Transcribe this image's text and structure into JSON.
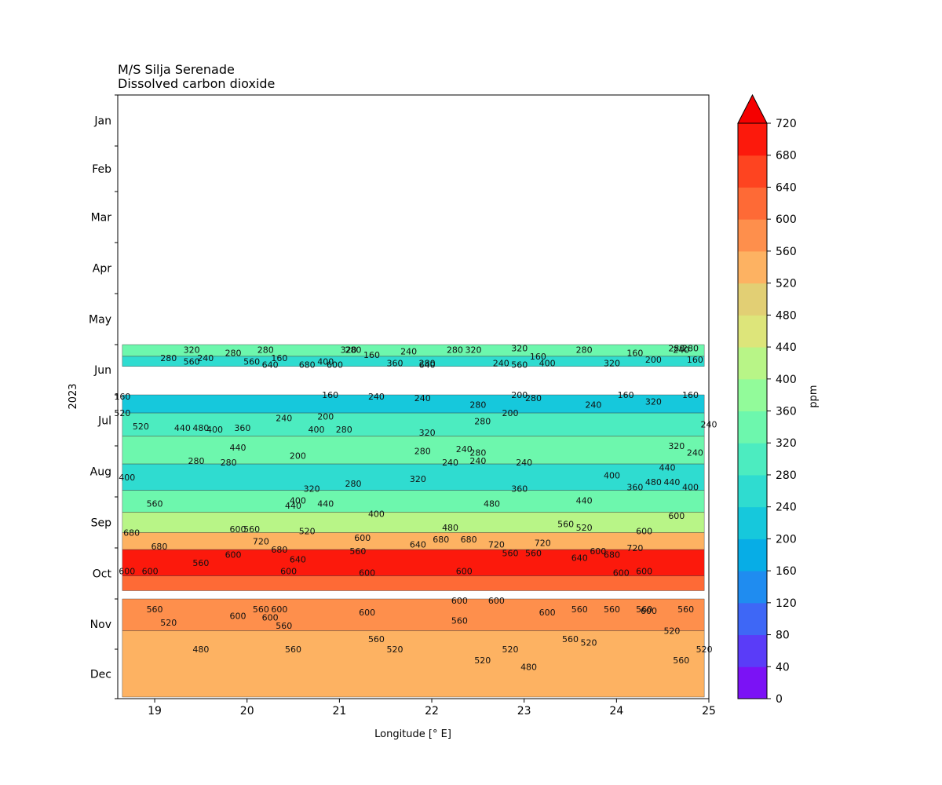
{
  "chart_data": {
    "type": "heatmap",
    "title_lines": [
      "M/S Silja Serenade",
      "Dissolved carbon dioxide"
    ],
    "xlabel": "Longitude [° E]",
    "ylabel": "2023",
    "xlim": [
      18.6,
      25
    ],
    "x_ticks": [
      19,
      20,
      21,
      22,
      23,
      24,
      25
    ],
    "y_ticks": [
      "Jan",
      "Feb",
      "Mar",
      "Apr",
      "May",
      "Jun",
      "Jul",
      "Aug",
      "Sep",
      "Oct",
      "Nov",
      "Dec"
    ],
    "colorbar": {
      "label": "ppm",
      "levels": [
        0,
        40,
        80,
        120,
        160,
        200,
        240,
        280,
        320,
        360,
        400,
        440,
        480,
        520,
        560,
        600,
        640,
        680,
        720
      ],
      "extend": "max",
      "colors": [
        "#7b12f5",
        "#5a3cf8",
        "#3e67f6",
        "#1f8cf0",
        "#07ade6",
        "#16c8dc",
        "#2fdcd0",
        "#4cecc0",
        "#6df7ad",
        "#92fb9a",
        "#b8f587",
        "#dde57a",
        "#e2cf74",
        "#fdb262",
        "#fe8f4c",
        "#fe6a36",
        "#fe4420",
        "#fc190c",
        "#f50000"
      ]
    },
    "data_blocks": [
      {
        "date_range": [
          "Jun 01",
          "Jun 14"
        ],
        "lon_range": [
          18.65,
          24.95
        ]
      },
      {
        "date_range": [
          "Jul 01",
          "Oct 27"
        ],
        "lon_range": [
          18.65,
          24.95
        ]
      },
      {
        "date_range": [
          "Nov 01",
          "Dec 31"
        ],
        "lon_range": [
          18.65,
          24.95
        ]
      }
    ],
    "bands": [
      {
        "date_range": [
          "Jun 01",
          "Jun 08"
        ],
        "value": 330
      },
      {
        "date_range": [
          "Jun 08",
          "Jun 14"
        ],
        "value": 250
      },
      {
        "date_range": [
          "Jul 01",
          "Jul 12"
        ],
        "value": 230
      },
      {
        "date_range": [
          "Jul 12",
          "Jul 26"
        ],
        "value": 290
      },
      {
        "date_range": [
          "Jul 26",
          "Aug 12"
        ],
        "value": 320
      },
      {
        "date_range": [
          "Aug 12",
          "Aug 28"
        ],
        "value": 270
      },
      {
        "date_range": [
          "Aug 28",
          "Sep 10"
        ],
        "value": 350
      },
      {
        "date_range": [
          "Sep 10",
          "Sep 22"
        ],
        "value": 430
      },
      {
        "date_range": [
          "Sep 22",
          "Oct 02"
        ],
        "value": 540
      },
      {
        "date_range": [
          "Oct 02",
          "Oct 18"
        ],
        "value": 690
      },
      {
        "date_range": [
          "Oct 18",
          "Oct 27"
        ],
        "value": 610
      },
      {
        "date_range": [
          "Nov 01",
          "Nov 20"
        ],
        "value": 590
      },
      {
        "date_range": [
          "Nov 20",
          "Dec 31"
        ],
        "value": 520
      }
    ],
    "contour_labels": [
      {
        "text": "320",
        "lon": 19.4,
        "date": "Jun 04"
      },
      {
        "text": "280",
        "lon": 20.2,
        "date": "Jun 04"
      },
      {
        "text": "280",
        "lon": 19.85,
        "date": "Jun 06"
      },
      {
        "text": "320",
        "lon": 21.1,
        "date": "Jun 04"
      },
      {
        "text": "280",
        "lon": 21.15,
        "date": "Jun 04"
      },
      {
        "text": "240",
        "lon": 21.75,
        "date": "Jun 05"
      },
      {
        "text": "160",
        "lon": 21.35,
        "date": "Jun 07"
      },
      {
        "text": "280",
        "lon": 22.25,
        "date": "Jun 04"
      },
      {
        "text": "320",
        "lon": 22.45,
        "date": "Jun 04"
      },
      {
        "text": "320",
        "lon": 22.95,
        "date": "Jun 03"
      },
      {
        "text": "280",
        "lon": 23.65,
        "date": "Jun 04"
      },
      {
        "text": "280",
        "lon": 24.65,
        "date": "Jun 03"
      },
      {
        "text": "240",
        "lon": 24.7,
        "date": "Jun 04"
      },
      {
        "text": "280",
        "lon": 24.8,
        "date": "Jun 03"
      },
      {
        "text": "160",
        "lon": 23.15,
        "date": "Jun 08"
      },
      {
        "text": "160",
        "lon": 24.2,
        "date": "Jun 06"
      },
      {
        "text": "200",
        "lon": 24.4,
        "date": "Jun 10"
      },
      {
        "text": "160",
        "lon": 24.85,
        "date": "Jun 10"
      },
      {
        "text": "280",
        "lon": 19.15,
        "date": "Jun 09"
      },
      {
        "text": "560",
        "lon": 19.4,
        "date": "Jun 11"
      },
      {
        "text": "240",
        "lon": 19.55,
        "date": "Jun 09"
      },
      {
        "text": "560",
        "lon": 20.05,
        "date": "Jun 11"
      },
      {
        "text": "160",
        "lon": 20.35,
        "date": "Jun 09"
      },
      {
        "text": "640",
        "lon": 20.25,
        "date": "Jun 13"
      },
      {
        "text": "680",
        "lon": 20.65,
        "date": "Jun 13"
      },
      {
        "text": "400",
        "lon": 20.85,
        "date": "Jun 11"
      },
      {
        "text": "600",
        "lon": 20.95,
        "date": "Jun 13"
      },
      {
        "text": "360",
        "lon": 21.6,
        "date": "Jun 12"
      },
      {
        "text": "280",
        "lon": 21.95,
        "date": "Jun 12"
      },
      {
        "text": "640",
        "lon": 21.95,
        "date": "Jun 13"
      },
      {
        "text": "240",
        "lon": 22.75,
        "date": "Jun 12"
      },
      {
        "text": "560",
        "lon": 22.95,
        "date": "Jun 13"
      },
      {
        "text": "400",
        "lon": 23.25,
        "date": "Jun 12"
      },
      {
        "text": "320",
        "lon": 23.95,
        "date": "Jun 12"
      },
      {
        "text": "160",
        "lon": 18.65,
        "date": "Jul 02"
      },
      {
        "text": "160",
        "lon": 20.9,
        "date": "Jul 01"
      },
      {
        "text": "240",
        "lon": 21.4,
        "date": "Jul 02"
      },
      {
        "text": "240",
        "lon": 21.9,
        "date": "Jul 03"
      },
      {
        "text": "200",
        "lon": 22.95,
        "date": "Jul 01"
      },
      {
        "text": "280",
        "lon": 23.1,
        "date": "Jul 03"
      },
      {
        "text": "280",
        "lon": 22.5,
        "date": "Jul 07"
      },
      {
        "text": "200",
        "lon": 22.85,
        "date": "Jul 12"
      },
      {
        "text": "160",
        "lon": 24.1,
        "date": "Jul 01"
      },
      {
        "text": "160",
        "lon": 24.8,
        "date": "Jul 01"
      },
      {
        "text": "240",
        "lon": 23.75,
        "date": "Jul 07"
      },
      {
        "text": "320",
        "lon": 24.4,
        "date": "Jul 05"
      },
      {
        "text": "240",
        "lon": 25.0,
        "date": "Jul 19"
      },
      {
        "text": "520",
        "lon": 18.65,
        "date": "Jul 12"
      },
      {
        "text": "520",
        "lon": 18.85,
        "date": "Jul 20"
      },
      {
        "text": "440",
        "lon": 19.3,
        "date": "Jul 21"
      },
      {
        "text": "480",
        "lon": 19.5,
        "date": "Jul 21"
      },
      {
        "text": "400",
        "lon": 19.65,
        "date": "Jul 22"
      },
      {
        "text": "360",
        "lon": 19.95,
        "date": "Jul 21"
      },
      {
        "text": "240",
        "lon": 20.4,
        "date": "Jul 15"
      },
      {
        "text": "200",
        "lon": 20.85,
        "date": "Jul 14"
      },
      {
        "text": "400",
        "lon": 20.75,
        "date": "Jul 22"
      },
      {
        "text": "280",
        "lon": 21.05,
        "date": "Jul 22"
      },
      {
        "text": "280",
        "lon": 22.55,
        "date": "Jul 17"
      },
      {
        "text": "320",
        "lon": 21.95,
        "date": "Jul 24"
      },
      {
        "text": "440",
        "lon": 19.9,
        "date": "Aug 02"
      },
      {
        "text": "280",
        "lon": 19.45,
        "date": "Aug 10"
      },
      {
        "text": "280",
        "lon": 19.8,
        "date": "Aug 11"
      },
      {
        "text": "200",
        "lon": 20.55,
        "date": "Aug 07"
      },
      {
        "text": "280",
        "lon": 21.9,
        "date": "Aug 04"
      },
      {
        "text": "240",
        "lon": 22.35,
        "date": "Aug 03"
      },
      {
        "text": "280",
        "lon": 22.5,
        "date": "Aug 05"
      },
      {
        "text": "240",
        "lon": 22.5,
        "date": "Aug 10"
      },
      {
        "text": "240",
        "lon": 22.2,
        "date": "Aug 11"
      },
      {
        "text": "240",
        "lon": 23.0,
        "date": "Aug 11"
      },
      {
        "text": "320",
        "lon": 24.65,
        "date": "Aug 01"
      },
      {
        "text": "240",
        "lon": 24.85,
        "date": "Aug 05"
      },
      {
        "text": "440",
        "lon": 24.55,
        "date": "Aug 14"
      },
      {
        "text": "400",
        "lon": 18.7,
        "date": "Aug 20"
      },
      {
        "text": "320",
        "lon": 21.85,
        "date": "Aug 21"
      },
      {
        "text": "280",
        "lon": 21.15,
        "date": "Aug 24"
      },
      {
        "text": "320",
        "lon": 20.7,
        "date": "Aug 27"
      },
      {
        "text": "400",
        "lon": 23.95,
        "date": "Aug 19"
      },
      {
        "text": "480",
        "lon": 24.4,
        "date": "Aug 23"
      },
      {
        "text": "440",
        "lon": 24.6,
        "date": "Aug 23"
      },
      {
        "text": "400",
        "lon": 24.8,
        "date": "Aug 26"
      },
      {
        "text": "360",
        "lon": 24.2,
        "date": "Aug 26"
      },
      {
        "text": "360",
        "lon": 22.95,
        "date": "Aug 27"
      },
      {
        "text": "400",
        "lon": 20.55,
        "date": "Sep 03"
      },
      {
        "text": "440",
        "lon": 20.5,
        "date": "Sep 06"
      },
      {
        "text": "440",
        "lon": 20.85,
        "date": "Sep 05"
      },
      {
        "text": "560",
        "lon": 19.0,
        "date": "Sep 05"
      },
      {
        "text": "400",
        "lon": 21.4,
        "date": "Sep 11"
      },
      {
        "text": "480",
        "lon": 22.65,
        "date": "Sep 05"
      },
      {
        "text": "440",
        "lon": 23.65,
        "date": "Sep 03"
      },
      {
        "text": "600",
        "lon": 24.65,
        "date": "Sep 12"
      },
      {
        "text": "600",
        "lon": 19.9,
        "date": "Sep 20"
      },
      {
        "text": "560",
        "lon": 20.05,
        "date": "Sep 20"
      },
      {
        "text": "520",
        "lon": 20.65,
        "date": "Sep 21"
      },
      {
        "text": "480",
        "lon": 22.2,
        "date": "Sep 19"
      },
      {
        "text": "560",
        "lon": 23.45,
        "date": "Sep 17"
      },
      {
        "text": "520",
        "lon": 23.65,
        "date": "Sep 19"
      },
      {
        "text": "600",
        "lon": 24.3,
        "date": "Sep 21"
      },
      {
        "text": "680",
        "lon": 18.75,
        "date": "Sep 22"
      },
      {
        "text": "680",
        "lon": 19.05,
        "date": "Sep 30"
      },
      {
        "text": "720",
        "lon": 20.15,
        "date": "Sep 27"
      },
      {
        "text": "680",
        "lon": 20.35,
        "date": "Oct 02"
      },
      {
        "text": "640",
        "lon": 20.55,
        "date": "Oct 08"
      },
      {
        "text": "600",
        "lon": 19.85,
        "date": "Oct 05"
      },
      {
        "text": "560",
        "lon": 19.5,
        "date": "Oct 10"
      },
      {
        "text": "640",
        "lon": 21.85,
        "date": "Sep 29"
      },
      {
        "text": "600",
        "lon": 21.25,
        "date": "Sep 25"
      },
      {
        "text": "560",
        "lon": 21.2,
        "date": "Oct 03"
      },
      {
        "text": "680",
        "lon": 22.1,
        "date": "Sep 26"
      },
      {
        "text": "680",
        "lon": 22.4,
        "date": "Sep 26"
      },
      {
        "text": "720",
        "lon": 22.7,
        "date": "Sep 29"
      },
      {
        "text": "560",
        "lon": 22.85,
        "date": "Oct 04"
      },
      {
        "text": "560",
        "lon": 23.1,
        "date": "Oct 04"
      },
      {
        "text": "720",
        "lon": 23.2,
        "date": "Sep 28"
      },
      {
        "text": "720",
        "lon": 24.2,
        "date": "Oct 01"
      },
      {
        "text": "640",
        "lon": 23.6,
        "date": "Oct 07"
      },
      {
        "text": "600",
        "lon": 23.8,
        "date": "Oct 03"
      },
      {
        "text": "680",
        "lon": 23.95,
        "date": "Oct 05"
      },
      {
        "text": "600",
        "lon": 18.7,
        "date": "Oct 15"
      },
      {
        "text": "600",
        "lon": 18.95,
        "date": "Oct 15"
      },
      {
        "text": "600",
        "lon": 20.45,
        "date": "Oct 15"
      },
      {
        "text": "600",
        "lon": 21.3,
        "date": "Oct 16"
      },
      {
        "text": "600",
        "lon": 22.35,
        "date": "Oct 15"
      },
      {
        "text": "600",
        "lon": 24.05,
        "date": "Oct 16"
      },
      {
        "text": "600",
        "lon": 24.3,
        "date": "Oct 15"
      },
      {
        "text": "600",
        "lon": 22.3,
        "date": "Nov 02"
      },
      {
        "text": "600",
        "lon": 22.7,
        "date": "Nov 02"
      },
      {
        "text": "560",
        "lon": 19.0,
        "date": "Nov 07"
      },
      {
        "text": "560",
        "lon": 20.15,
        "date": "Nov 07"
      },
      {
        "text": "600",
        "lon": 20.35,
        "date": "Nov 07"
      },
      {
        "text": "600",
        "lon": 21.3,
        "date": "Nov 09"
      },
      {
        "text": "560",
        "lon": 23.6,
        "date": "Nov 07"
      },
      {
        "text": "560",
        "lon": 23.95,
        "date": "Nov 07"
      },
      {
        "text": "560",
        "lon": 24.3,
        "date": "Nov 07"
      },
      {
        "text": "560",
        "lon": 24.75,
        "date": "Nov 07"
      },
      {
        "text": "600",
        "lon": 24.35,
        "date": "Nov 08"
      },
      {
        "text": "600",
        "lon": 23.25,
        "date": "Nov 09"
      },
      {
        "text": "600",
        "lon": 19.9,
        "date": "Nov 11"
      },
      {
        "text": "600",
        "lon": 20.25,
        "date": "Nov 12"
      },
      {
        "text": "520",
        "lon": 19.15,
        "date": "Nov 15"
      },
      {
        "text": "560",
        "lon": 20.4,
        "date": "Nov 17"
      },
      {
        "text": "560",
        "lon": 22.3,
        "date": "Nov 14"
      },
      {
        "text": "560",
        "lon": 21.4,
        "date": "Nov 25"
      },
      {
        "text": "520",
        "lon": 24.6,
        "date": "Nov 20"
      },
      {
        "text": "560",
        "lon": 23.5,
        "date": "Nov 25"
      },
      {
        "text": "520",
        "lon": 23.7,
        "date": "Nov 27"
      },
      {
        "text": "480",
        "lon": 19.5,
        "date": "Dec 01"
      },
      {
        "text": "560",
        "lon": 20.5,
        "date": "Dec 01"
      },
      {
        "text": "520",
        "lon": 21.6,
        "date": "Dec 01"
      },
      {
        "text": "520",
        "lon": 22.85,
        "date": "Dec 01"
      },
      {
        "text": "520",
        "lon": 24.95,
        "date": "Dec 01"
      },
      {
        "text": "520",
        "lon": 22.55,
        "date": "Dec 08"
      },
      {
        "text": "480",
        "lon": 23.05,
        "date": "Dec 12"
      },
      {
        "text": "560",
        "lon": 24.7,
        "date": "Dec 08"
      }
    ]
  }
}
